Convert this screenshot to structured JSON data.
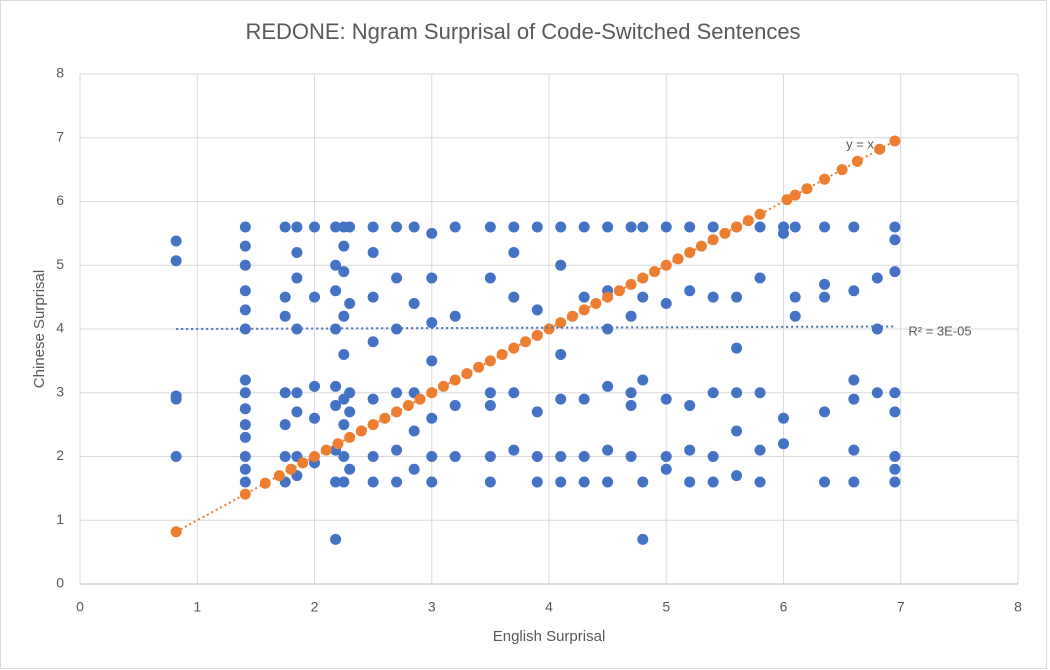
{
  "chart_data": {
    "type": "scatter",
    "title": "REDONE: Ngram Surprisal of Code-Switched Sentences",
    "x_label": "English Surprisal",
    "y_label": "Chinese Surprisal",
    "xlim": [
      0,
      8
    ],
    "ylim": [
      0,
      8
    ],
    "xticks": [
      0,
      1,
      2,
      3,
      4,
      5,
      6,
      7,
      8
    ],
    "yticks": [
      0,
      1,
      2,
      3,
      4,
      5,
      6,
      7,
      8
    ],
    "grid": true,
    "series": [
      {
        "color": "#4472c4",
        "x": [
          0.82,
          0.82,
          0.82,
          0.82,
          0.82,
          1.41,
          1.41,
          1.41,
          1.41,
          1.41,
          1.41,
          1.41,
          1.41,
          1.41,
          1.41,
          1.41,
          1.41,
          1.41,
          1.41,
          1.75,
          1.75,
          1.75,
          1.75,
          1.75,
          1.75,
          1.75,
          1.85,
          1.85,
          1.85,
          1.85,
          1.85,
          1.85,
          1.85,
          1.85,
          2.0,
          2.0,
          2.0,
          2.0,
          2.0,
          2.18,
          2.18,
          2.18,
          2.18,
          2.18,
          2.18,
          2.18,
          2.18,
          2.18,
          2.25,
          2.25,
          2.25,
          2.25,
          2.25,
          2.25,
          2.25,
          2.25,
          2.25,
          2.3,
          2.3,
          2.3,
          2.3,
          2.3,
          2.5,
          2.5,
          2.5,
          2.5,
          2.5,
          2.5,
          2.5,
          2.7,
          2.7,
          2.7,
          2.7,
          2.7,
          2.7,
          2.85,
          2.85,
          2.85,
          2.85,
          2.85,
          3.0,
          3.0,
          3.0,
          3.0,
          3.0,
          3.0,
          3.0,
          3.2,
          3.2,
          3.2,
          3.2,
          3.5,
          3.5,
          3.5,
          3.5,
          3.5,
          3.5,
          3.7,
          3.7,
          3.7,
          3.7,
          3.7,
          3.9,
          3.9,
          3.9,
          3.9,
          3.9,
          4.1,
          4.1,
          4.1,
          4.1,
          4.1,
          4.1,
          4.3,
          4.3,
          4.3,
          4.3,
          4.3,
          4.5,
          4.5,
          4.5,
          4.5,
          4.5,
          4.5,
          4.7,
          4.7,
          4.7,
          4.7,
          4.7,
          4.8,
          4.8,
          4.8,
          4.8,
          4.8,
          5.0,
          5.0,
          5.0,
          5.0,
          5.0,
          5.2,
          5.2,
          5.2,
          5.2,
          5.2,
          5.4,
          5.4,
          5.4,
          5.4,
          5.4,
          5.6,
          5.6,
          5.6,
          5.6,
          5.6,
          5.6,
          5.8,
          5.8,
          5.8,
          5.8,
          5.8,
          6.0,
          6.0,
          6.0,
          6.0,
          6.1,
          6.1,
          6.1,
          6.35,
          6.35,
          6.35,
          6.35,
          6.35,
          6.6,
          6.6,
          6.6,
          6.6,
          6.6,
          6.6,
          6.8,
          6.8,
          6.8,
          6.95,
          6.95,
          6.95,
          6.95,
          6.95,
          6.95,
          6.95,
          6.95
        ],
        "values": [
          5.38,
          5.07,
          2.95,
          2.9,
          2.0,
          1.6,
          1.8,
          2.0,
          2.3,
          2.5,
          2.75,
          3.0,
          3.2,
          4.0,
          4.3,
          4.6,
          5.0,
          5.3,
          5.6,
          1.6,
          2.0,
          2.5,
          3.0,
          4.2,
          4.5,
          5.6,
          1.7,
          2.0,
          2.7,
          3.0,
          4.0,
          4.8,
          5.2,
          5.6,
          1.9,
          2.6,
          3.1,
          4.5,
          5.6,
          0.7,
          1.6,
          2.1,
          2.8,
          3.1,
          4.0,
          4.6,
          5.0,
          5.6,
          1.6,
          2.0,
          2.5,
          2.9,
          3.6,
          4.2,
          4.9,
          5.3,
          5.6,
          1.8,
          2.7,
          3.0,
          4.4,
          5.6,
          1.6,
          2.0,
          2.9,
          3.8,
          4.5,
          5.2,
          5.6,
          1.6,
          2.1,
          3.0,
          4.0,
          4.8,
          5.6,
          1.8,
          2.4,
          3.0,
          4.4,
          5.6,
          1.6,
          2.0,
          2.6,
          3.5,
          4.1,
          4.8,
          5.5,
          2.0,
          2.8,
          4.2,
          5.6,
          1.6,
          2.0,
          2.8,
          3.0,
          4.8,
          5.6,
          2.1,
          3.0,
          4.5,
          5.2,
          5.6,
          1.6,
          2.0,
          2.7,
          4.3,
          5.6,
          1.6,
          2.0,
          2.9,
          3.6,
          5.0,
          5.6,
          1.6,
          2.0,
          2.9,
          4.5,
          5.6,
          1.6,
          2.1,
          3.1,
          4.0,
          4.6,
          5.6,
          2.0,
          2.8,
          3.0,
          4.2,
          5.6,
          0.7,
          1.6,
          3.2,
          4.5,
          5.6,
          1.8,
          2.0,
          2.9,
          4.4,
          5.6,
          1.6,
          2.1,
          2.8,
          4.6,
          5.6,
          1.6,
          2.0,
          3.0,
          4.5,
          5.6,
          1.7,
          2.4,
          3.0,
          3.7,
          4.5,
          5.6,
          1.6,
          2.1,
          3.0,
          4.8,
          5.6,
          2.2,
          2.6,
          5.5,
          5.6,
          4.2,
          4.5,
          5.6,
          1.6,
          2.7,
          4.5,
          4.7,
          5.6,
          1.6,
          2.1,
          2.9,
          3.2,
          4.6,
          5.6,
          3.0,
          4.0,
          4.8,
          1.6,
          1.8,
          2.0,
          2.7,
          3.0,
          4.9,
          5.4,
          5.6
        ],
        "trendline": {
          "label": "R² = 3E-05",
          "x": [
            0.82,
            6.95
          ],
          "values": [
            4.0,
            4.04
          ]
        }
      },
      {
        "color": "#ed7d31",
        "x": [
          0.82,
          1.41,
          1.58,
          1.7,
          1.8,
          1.9,
          2.0,
          2.1,
          2.2,
          2.3,
          2.4,
          2.5,
          2.6,
          2.7,
          2.8,
          2.9,
          3.0,
          3.1,
          3.2,
          3.3,
          3.4,
          3.5,
          3.6,
          3.7,
          3.8,
          3.9,
          4.0,
          4.1,
          4.2,
          4.3,
          4.4,
          4.5,
          4.6,
          4.7,
          4.8,
          4.9,
          5.0,
          5.1,
          5.2,
          5.3,
          5.4,
          5.5,
          5.6,
          5.7,
          5.8,
          6.03,
          6.1,
          6.2,
          6.35,
          6.5,
          6.63,
          6.82,
          6.95
        ],
        "values": [
          0.82,
          1.41,
          1.58,
          1.7,
          1.8,
          1.9,
          2.0,
          2.1,
          2.2,
          2.3,
          2.4,
          2.5,
          2.6,
          2.7,
          2.8,
          2.9,
          3.0,
          3.1,
          3.2,
          3.3,
          3.4,
          3.5,
          3.6,
          3.7,
          3.8,
          3.9,
          4.0,
          4.1,
          4.2,
          4.3,
          4.4,
          4.5,
          4.6,
          4.7,
          4.8,
          4.9,
          5.0,
          5.1,
          5.2,
          5.3,
          5.4,
          5.5,
          5.6,
          5.7,
          5.8,
          6.03,
          6.1,
          6.2,
          6.35,
          6.5,
          6.63,
          6.82,
          6.95
        ],
        "trendline": {
          "label": "y = x",
          "x": [
            0.82,
            6.95
          ],
          "values": [
            0.82,
            6.95
          ]
        }
      }
    ]
  }
}
